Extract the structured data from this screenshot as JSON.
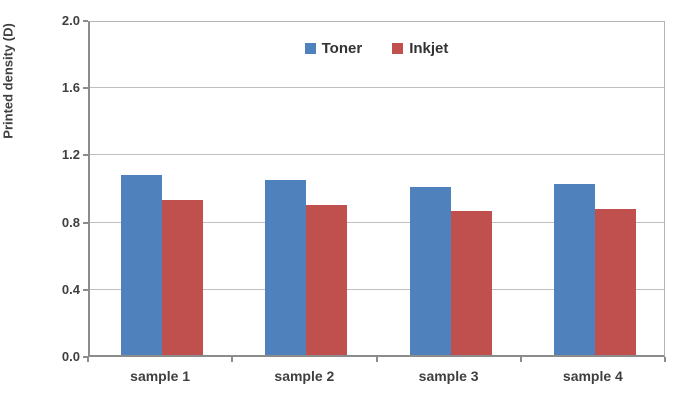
{
  "chart_data": {
    "type": "bar",
    "title": "",
    "xlabel": "",
    "ylabel": "Printed density (D)",
    "categories": [
      "sample 1",
      "sample 2",
      "sample 3",
      "sample 4"
    ],
    "series": [
      {
        "name": "Toner",
        "color": "#4f81bd",
        "values": [
          1.07,
          1.04,
          1.0,
          1.02
        ]
      },
      {
        "name": "Inkjet",
        "color": "#c0504d",
        "values": [
          0.92,
          0.89,
          0.86,
          0.87
        ]
      }
    ],
    "ylim": [
      0.0,
      2.0
    ],
    "ytick_step": 0.4,
    "ytick_labels": [
      "0.0",
      "0.4",
      "0.8",
      "1.2",
      "1.6",
      "2.0"
    ],
    "grid": true,
    "legend_position": "top-center",
    "colors": {
      "gridline": "#bfbfbf",
      "axis_line": "#8c8c8c",
      "tick_text": "#3f3f3f",
      "background": "#ffffff"
    }
  }
}
